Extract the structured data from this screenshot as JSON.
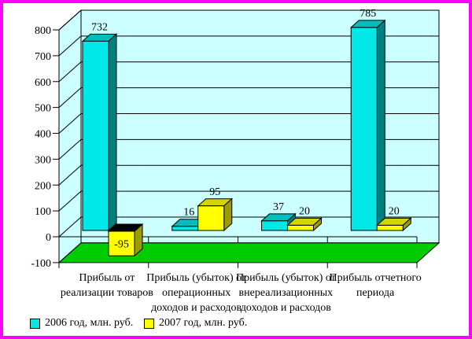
{
  "chart_data": {
    "type": "bar",
    "projection": "3d",
    "title": "",
    "categories": [
      [
        "Прибыль от",
        "реализации товаров"
      ],
      [
        "Прибыль (убыток) от",
        "операционных",
        "доходов и расходов"
      ],
      [
        "Прибыль (убыток) от",
        "внереализационных",
        "доходов и расходов"
      ],
      [
        "Прибыль отчетного",
        "периода"
      ]
    ],
    "series": [
      {
        "name": "2006 год, млн. руб.",
        "values": [
          732,
          16,
          37,
          785
        ],
        "color": "#00E8E8",
        "top_color": "#00BDBD",
        "side_color": "#007F7F"
      },
      {
        "name": "2007 год, млн. руб.",
        "values": [
          -95,
          95,
          20,
          20
        ],
        "color": "#FFFF00",
        "top_color": "#D4D400",
        "side_color": "#9C9C00"
      }
    ],
    "data_labels": [
      [
        732,
        16,
        37,
        785
      ],
      [
        -95,
        95,
        20,
        20
      ]
    ],
    "ylim": [
      -100,
      800
    ],
    "yticks": [
      800,
      700,
      600,
      500,
      400,
      300,
      200,
      100,
      0,
      -100
    ],
    "grid": true,
    "legend_position": "bottom",
    "negative_top_color": "#000000",
    "colors": {
      "wall": "#CCFFFF",
      "floor": "#00CC00",
      "frame": "#FF00FF",
      "background": "#FFFFFF",
      "axis": "#000000",
      "text": "#000000"
    }
  }
}
